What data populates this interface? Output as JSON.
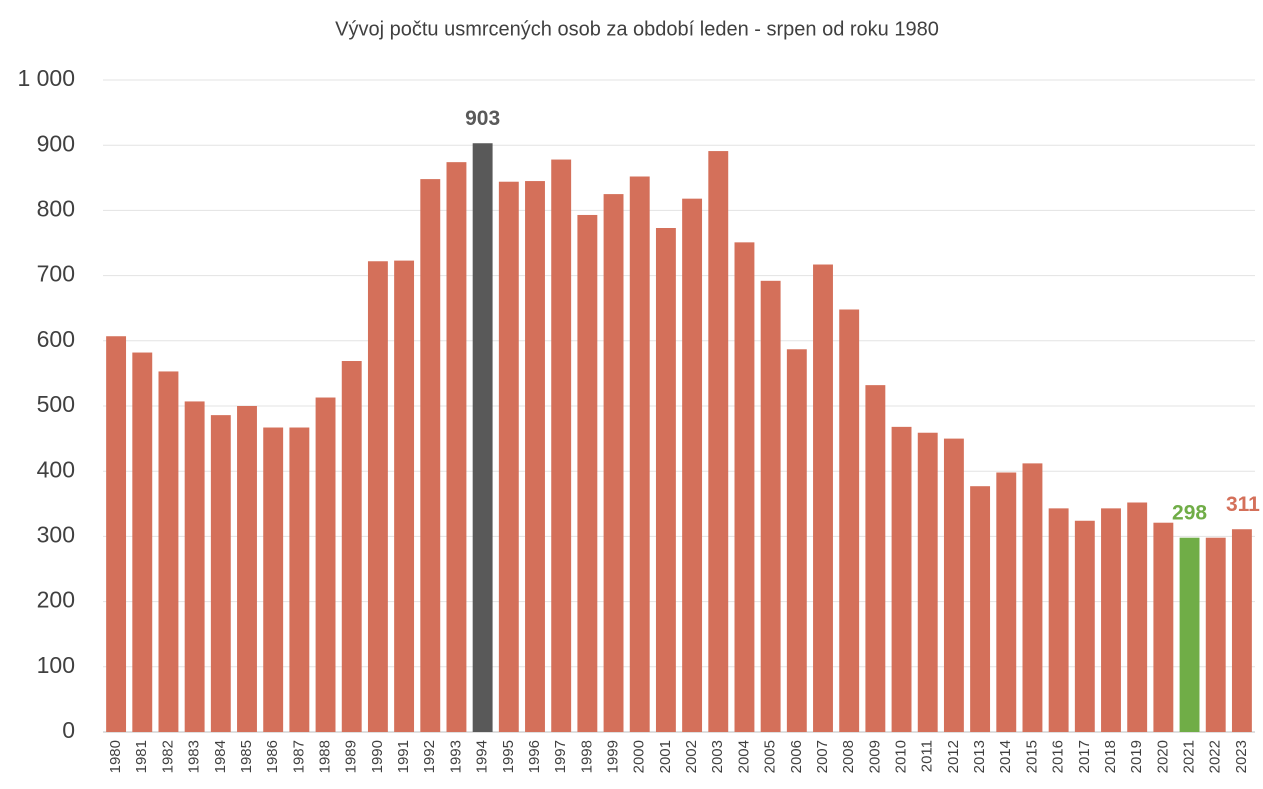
{
  "chart_data": {
    "type": "bar",
    "title": "Vývoj počtu usmrcených osob za období leden - srpen od roku 1980",
    "categories": [
      "1980",
      "1981",
      "1982",
      "1983",
      "1984",
      "1985",
      "1986",
      "1987",
      "1988",
      "1989",
      "1990",
      "1991",
      "1992",
      "1993",
      "1994",
      "1995",
      "1996",
      "1997",
      "1998",
      "1999",
      "2000",
      "2001",
      "2002",
      "2003",
      "2004",
      "2005",
      "2006",
      "2007",
      "2008",
      "2009",
      "2010",
      "2011",
      "2012",
      "2013",
      "2014",
      "2015",
      "2016",
      "2017",
      "2018",
      "2019",
      "2020",
      "2021",
      "2022",
      "2023"
    ],
    "values": [
      607,
      582,
      553,
      507,
      486,
      500,
      467,
      467,
      513,
      569,
      722,
      723,
      848,
      874,
      903,
      844,
      845,
      878,
      793,
      825,
      852,
      773,
      818,
      891,
      751,
      692,
      587,
      717,
      648,
      532,
      468,
      459,
      450,
      377,
      398,
      412,
      343,
      324,
      343,
      352,
      321,
      298,
      298,
      311
    ],
    "value_labels": [
      null,
      null,
      null,
      null,
      null,
      null,
      null,
      null,
      null,
      null,
      null,
      null,
      null,
      null,
      "903",
      null,
      null,
      null,
      null,
      null,
      null,
      null,
      null,
      null,
      null,
      null,
      null,
      null,
      null,
      null,
      null,
      null,
      null,
      null,
      null,
      null,
      null,
      null,
      null,
      null,
      null,
      "298",
      null,
      "311"
    ],
    "colors": [
      "#d4705a",
      "#d4705a",
      "#d4705a",
      "#d4705a",
      "#d4705a",
      "#d4705a",
      "#d4705a",
      "#d4705a",
      "#d4705a",
      "#d4705a",
      "#d4705a",
      "#d4705a",
      "#d4705a",
      "#d4705a",
      "#595959",
      "#d4705a",
      "#d4705a",
      "#d4705a",
      "#d4705a",
      "#d4705a",
      "#d4705a",
      "#d4705a",
      "#d4705a",
      "#d4705a",
      "#d4705a",
      "#d4705a",
      "#d4705a",
      "#d4705a",
      "#d4705a",
      "#d4705a",
      "#d4705a",
      "#d4705a",
      "#d4705a",
      "#d4705a",
      "#d4705a",
      "#d4705a",
      "#d4705a",
      "#d4705a",
      "#d4705a",
      "#d4705a",
      "#d4705a",
      "#70ad47",
      "#d4705a",
      "#d4705a"
    ],
    "ylim": [
      0,
      1000
    ],
    "yticks": [
      0,
      100,
      200,
      300,
      400,
      500,
      600,
      700,
      800,
      900,
      {
        "value": 1000,
        "label": "1 000"
      }
    ],
    "grid": true
  }
}
